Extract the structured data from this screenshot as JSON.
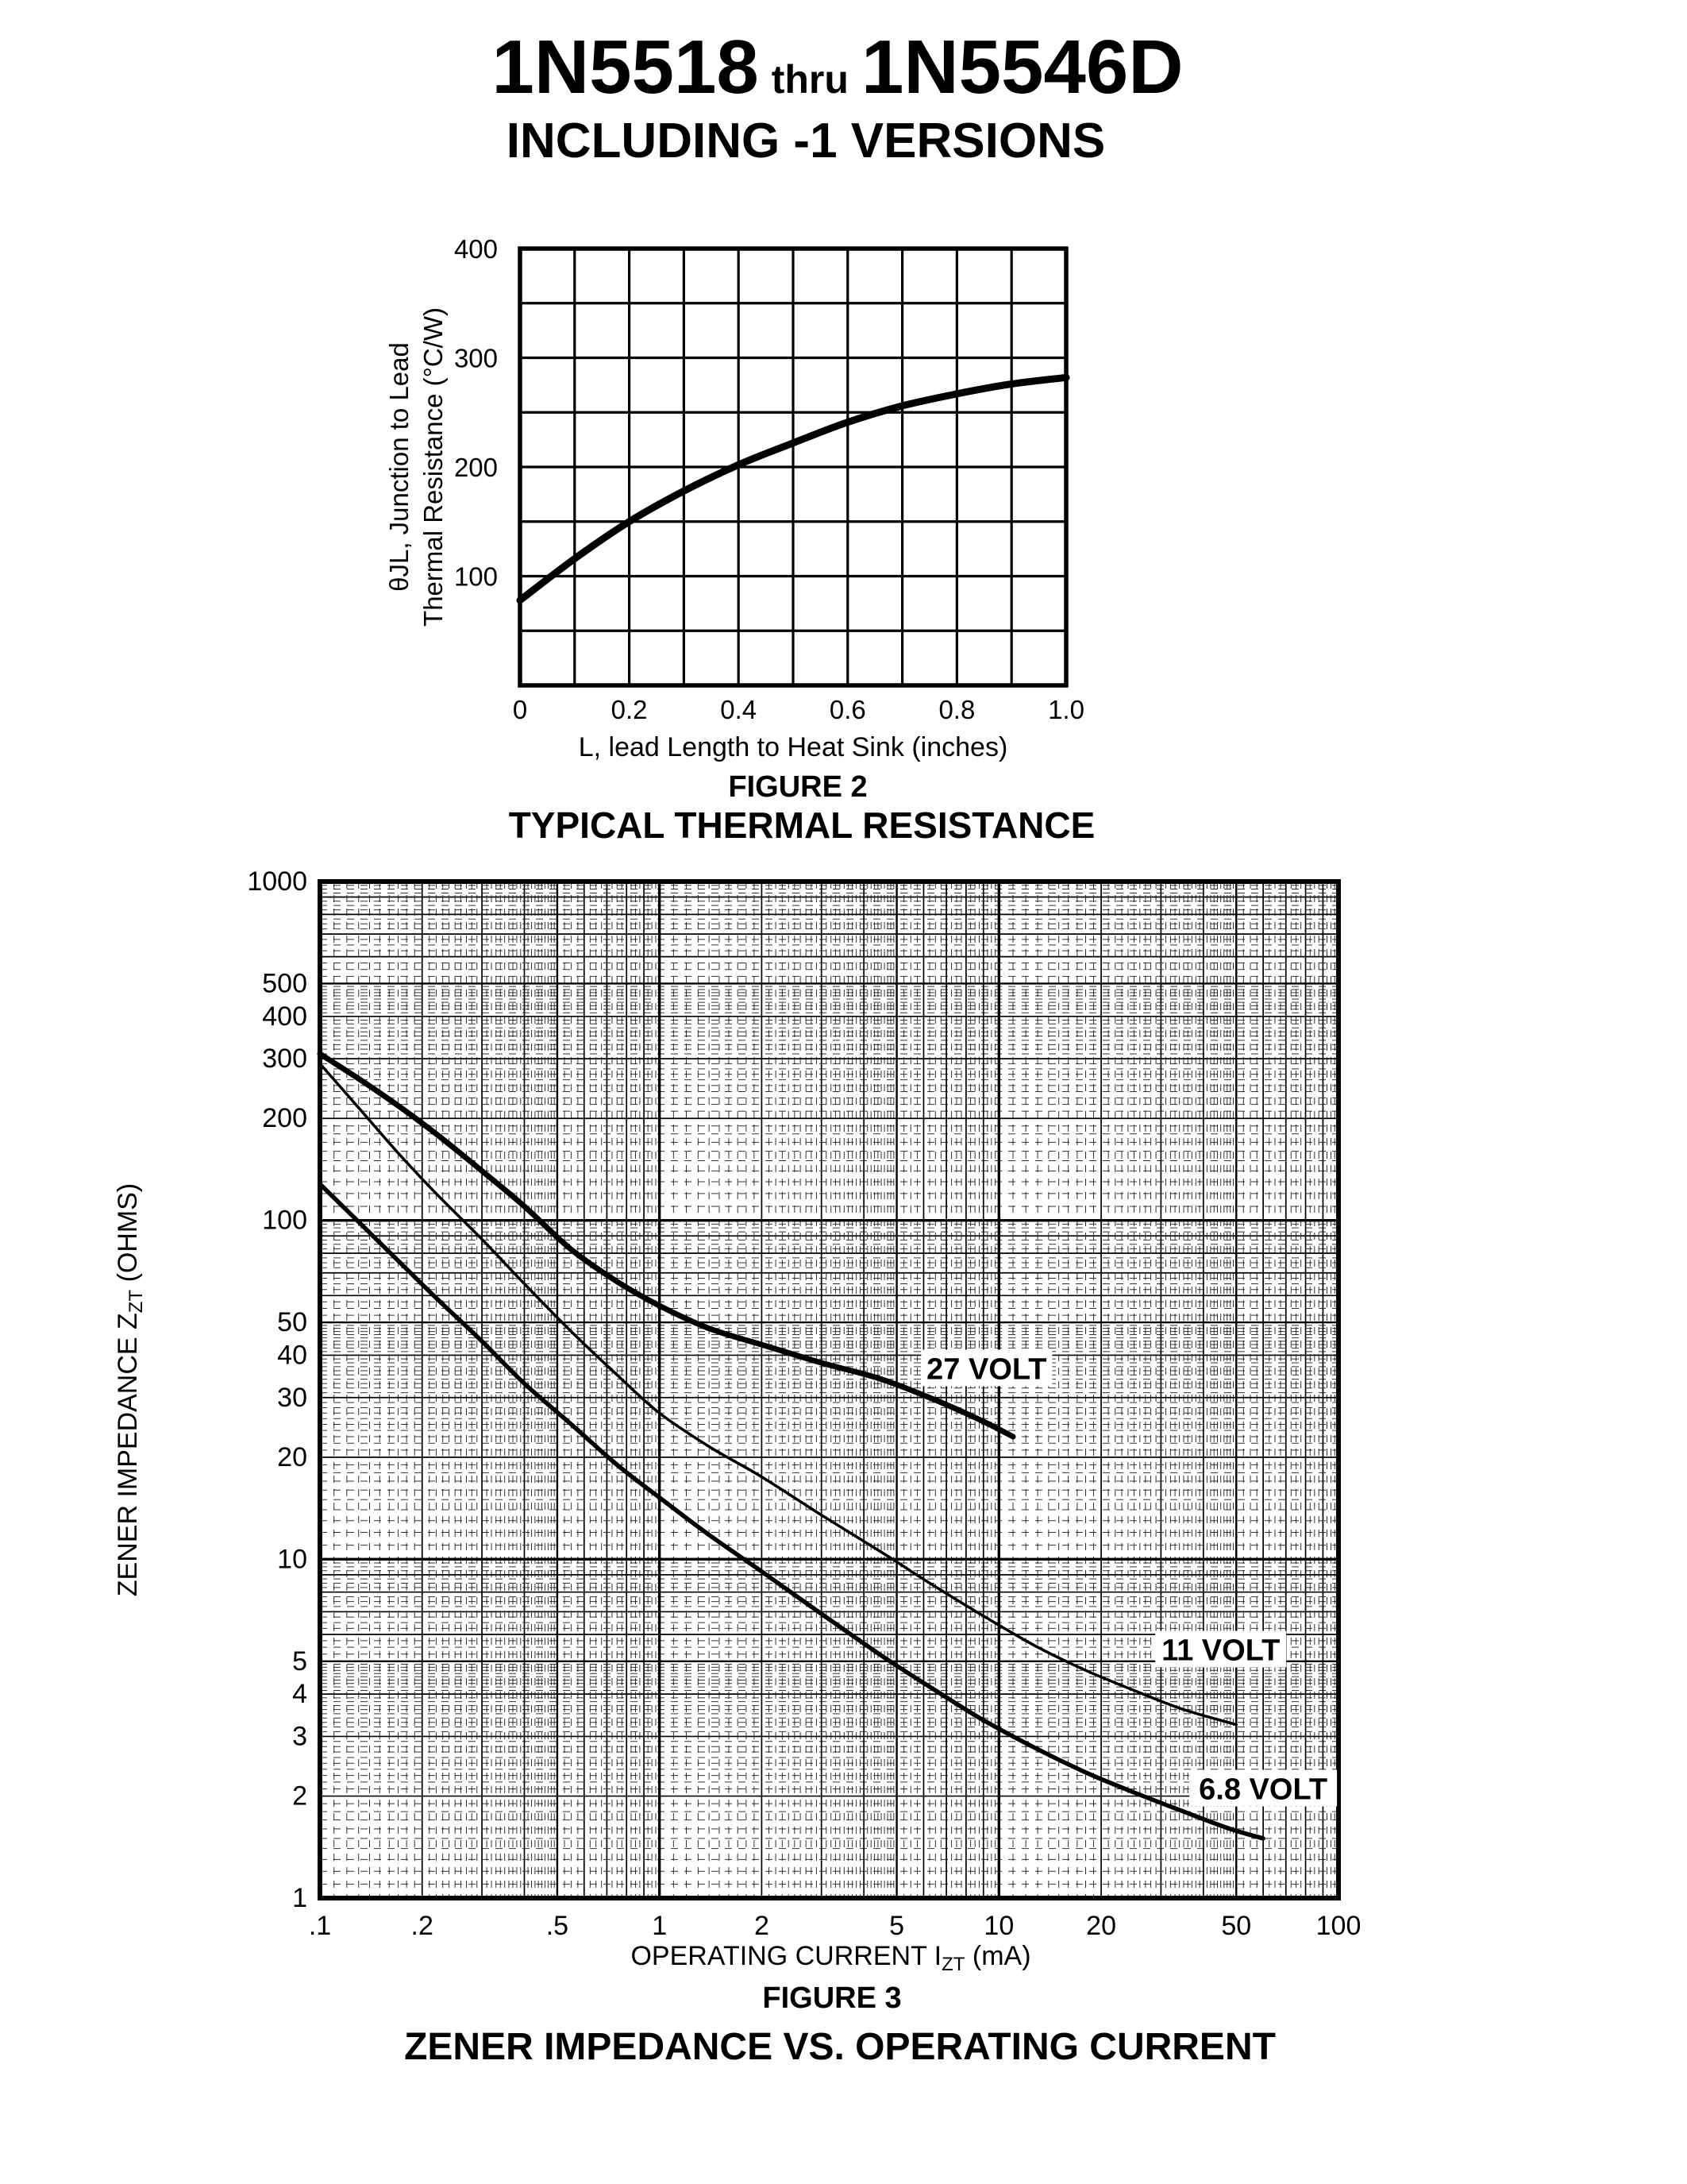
{
  "header": {
    "title_part1": "1N5518",
    "title_thru": "thru",
    "title_part2": "1N5546D",
    "subtitle": "INCLUDING -1 VERSIONS"
  },
  "colors": {
    "ink": "#000000",
    "paper": "#ffffff"
  },
  "chart_data": [
    {
      "type": "line",
      "figure_label": "FIGURE 2",
      "title": "TYPICAL THERMAL RESISTANCE",
      "xlabel": "L, lead Length to Heat Sink (inches)",
      "ylabel_lines": [
        "θJL, Junction to Lead",
        "Thermal Resistance (°C/W)"
      ],
      "xlim": [
        0,
        1.0
      ],
      "ylim": [
        0,
        400
      ],
      "x_minor_step": 0.1,
      "y_grid_step": 50,
      "grid": "on",
      "legend": "none",
      "x_ticks": [
        {
          "label": "0",
          "v": 0
        },
        {
          "label": "0.2",
          "v": 0.2
        },
        {
          "label": "0.4",
          "v": 0.4
        },
        {
          "label": "0.6",
          "v": 0.6
        },
        {
          "label": "0.8",
          "v": 0.8
        },
        {
          "label": "1.0",
          "v": 1.0
        }
      ],
      "y_ticks": [
        {
          "label": "400",
          "v": 400
        },
        {
          "label": "300",
          "v": 300
        },
        {
          "label": "200",
          "v": 200
        },
        {
          "label": "100",
          "v": 100
        }
      ],
      "series": [
        {
          "name": "junction to lead thermal resistance",
          "stroke_width": 9,
          "x": [
            0,
            0.1,
            0.2,
            0.3,
            0.4,
            0.5,
            0.6,
            0.7,
            0.8,
            0.9,
            1.0
          ],
          "y": [
            78,
            116,
            150,
            178,
            202,
            222,
            241,
            256,
            267,
            276,
            282
          ]
        }
      ]
    },
    {
      "type": "line",
      "figure_label": "FIGURE 3",
      "title": "ZENER IMPEDANCE VS. OPERATING CURRENT",
      "x_scale": "log",
      "y_scale": "log",
      "xlabel": {
        "pre": "OPERATING CURRENT I",
        "sub": "ZT",
        "post": " (mA)"
      },
      "ylabel": {
        "pre": "ZENER IMPEDANCE Z",
        "sub": "ZT",
        "post": " (OHMS)"
      },
      "xlim": [
        0.1,
        100
      ],
      "ylim": [
        1,
        1000
      ],
      "grid": "log-log fine ruled",
      "legend": "inline curve labels",
      "x_ticks": [
        {
          "label": ".1",
          "v": 0.1
        },
        {
          "label": ".2",
          "v": 0.2
        },
        {
          "label": ".5",
          "v": 0.5
        },
        {
          "label": "1",
          "v": 1
        },
        {
          "label": "2",
          "v": 2
        },
        {
          "label": "5",
          "v": 5
        },
        {
          "label": "10",
          "v": 10
        },
        {
          "label": "20",
          "v": 20
        },
        {
          "label": "50",
          "v": 50
        },
        {
          "label": "100",
          "v": 100
        }
      ],
      "y_ticks": [
        {
          "label": "1000",
          "v": 1000
        },
        {
          "label": "500",
          "v": 500
        },
        {
          "label": "400",
          "v": 400
        },
        {
          "label": "300",
          "v": 300
        },
        {
          "label": "200",
          "v": 200
        },
        {
          "label": "100",
          "v": 100
        },
        {
          "label": "50",
          "v": 50
        },
        {
          "label": "40",
          "v": 40
        },
        {
          "label": "30",
          "v": 30
        },
        {
          "label": "20",
          "v": 20
        },
        {
          "label": "10",
          "v": 10
        },
        {
          "label": "5",
          "v": 5
        },
        {
          "label": "4",
          "v": 4
        },
        {
          "label": "3",
          "v": 3
        },
        {
          "label": "2",
          "v": 2
        },
        {
          "label": "1",
          "v": 1
        }
      ],
      "series": [
        {
          "name": "27 VOLT",
          "label_at": [
            9.2,
            36.5
          ],
          "stroke_width": 7,
          "x": [
            0.1,
            0.13,
            0.17,
            0.22,
            0.3,
            0.4,
            0.55,
            0.75,
            1,
            1.4,
            2,
            3,
            4.5,
            6.5,
            9,
            11
          ],
          "y": [
            310,
            262,
            218,
            180,
            140,
            110,
            82,
            66,
            56,
            48,
            43,
            38,
            34,
            29.5,
            25.5,
            23
          ]
        },
        {
          "name": "11 VOLT",
          "label_at": [
            45,
            5.4
          ],
          "stroke_width": 3.5,
          "x": [
            0.1,
            0.13,
            0.17,
            0.22,
            0.3,
            0.4,
            0.55,
            0.75,
            1,
            1.4,
            2,
            3,
            4.5,
            6.5,
            9,
            13,
            18,
            25,
            35,
            50
          ],
          "y": [
            290,
            215,
            158,
            120,
            88,
            65,
            47,
            35,
            27,
            21.5,
            17.5,
            13.5,
            10.5,
            8.3,
            6.8,
            5.5,
            4.7,
            4.1,
            3.6,
            3.25
          ]
        },
        {
          "name": "6.8 VOLT",
          "label_at": [
            60,
            2.1
          ],
          "stroke_width": 5.5,
          "x": [
            0.1,
            0.13,
            0.17,
            0.22,
            0.3,
            0.4,
            0.55,
            0.75,
            1,
            1.4,
            2,
            3,
            4.5,
            6.5,
            9,
            13,
            18,
            25,
            35,
            48,
            60
          ],
          "y": [
            128,
            99,
            76,
            59,
            44,
            33,
            25,
            19,
            15.2,
            11.8,
            9.2,
            6.9,
            5.2,
            4.1,
            3.35,
            2.75,
            2.35,
            2.05,
            1.8,
            1.6,
            1.5
          ]
        }
      ]
    }
  ]
}
